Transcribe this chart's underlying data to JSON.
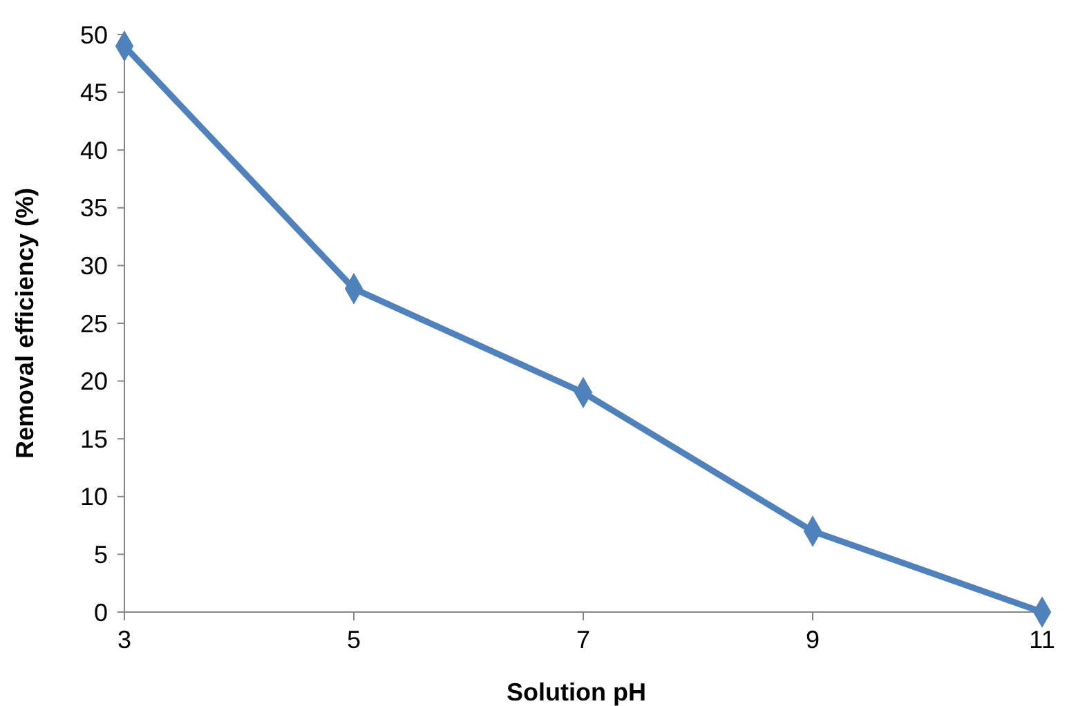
{
  "chart_data": {
    "type": "line",
    "xlabel": "Solution pH",
    "ylabel": "Removal efficiency (%)",
    "x": [
      3,
      5,
      7,
      9,
      11
    ],
    "series": [
      {
        "color": "#4f81bd",
        "values": [
          49,
          28,
          19,
          7,
          0
        ]
      }
    ],
    "xlim": [
      3,
      11
    ],
    "xticks": [
      3,
      5,
      7,
      9,
      11
    ],
    "ylim": [
      0,
      50
    ],
    "yticks": [
      0,
      5,
      10,
      15,
      20,
      25,
      30,
      35,
      40,
      45,
      50
    ],
    "grid": false,
    "marker": "diamond",
    "line_style": "solid"
  }
}
